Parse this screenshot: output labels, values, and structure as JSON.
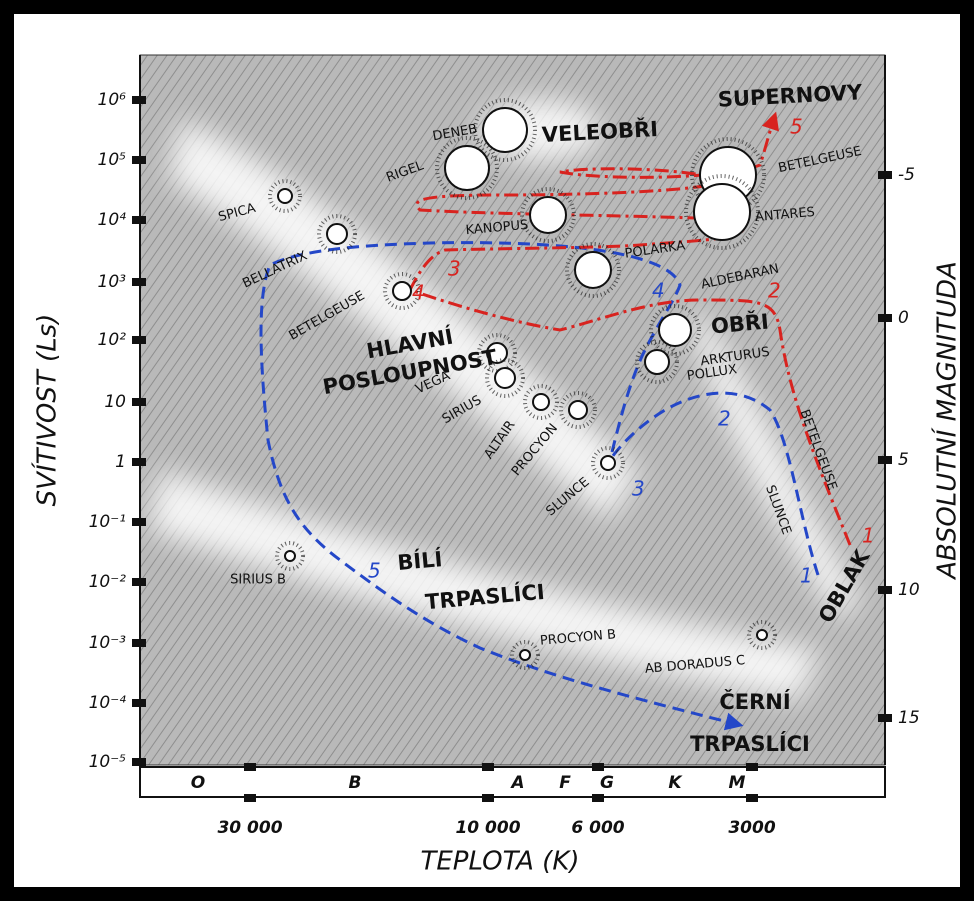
{
  "axes": {
    "y_left_label": "SVÍTIVOST (Ls)",
    "y_left_ticks": [
      "10⁶",
      "10⁵",
      "10⁴",
      "10³",
      "10²",
      "10",
      "1",
      "10⁻¹",
      "10⁻²",
      "10⁻³",
      "10⁻⁴",
      "10⁻⁵"
    ],
    "y_right_label": "ABSOLUTNÍ MAGNITUDA",
    "y_right_ticks": [
      "-5",
      "0",
      "5",
      "10",
      "15"
    ],
    "x_label": "TEPLOTA (K)",
    "x_ticks": [
      "30 000",
      "10 000",
      "6 000",
      "3000"
    ],
    "spectral_classes": [
      "O",
      "B",
      "A",
      "F",
      "G",
      "K",
      "M"
    ]
  },
  "stars": [
    "DENEB",
    "RIGEL",
    "BETELGEUSE",
    "ANTARES",
    "KANOPUS",
    "POLARKA",
    "SPICA",
    "BELLATRIX",
    "BETELGEUSE",
    "ALDEBARAN",
    "ARKTURUS",
    "POLLUX",
    "VEGA",
    "SIRIUS",
    "ALTAIR",
    "PROCYON",
    "SLUNCE",
    "SIRIUS B",
    "PROCYON B",
    "AB DORADUS C"
  ],
  "regions": [
    "SUPERNOVY",
    "VELEOBŘI",
    "HLAVNÍ",
    "POSLOUPNOST",
    "OBŘI",
    "BÍLÍ",
    "TRPASLÍCI",
    "ČERNÍ",
    "TRPASLÍCI",
    "OBLAK"
  ],
  "tracks": {
    "sun": {
      "label": "SLUNCE",
      "steps": [
        "1",
        "2",
        "3",
        "4",
        "5"
      ]
    },
    "betelgeuse": {
      "label": "BETELGEUSE",
      "steps": [
        "1",
        "2",
        "3",
        "4",
        "5"
      ]
    }
  }
}
